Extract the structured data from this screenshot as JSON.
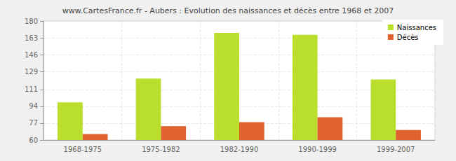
{
  "chart_data": {
    "type": "bar",
    "title": "www.CartesFrance.fr - Aubers : Evolution des naissances et décès entre 1968 et 2007",
    "categories": [
      "1968-1975",
      "1975-1982",
      "1982-1990",
      "1990-1999",
      "1999-2007"
    ],
    "series": [
      {
        "name": "Naissances",
        "color": "#b9df2c",
        "values": [
          98,
          122,
          168,
          166,
          121
        ]
      },
      {
        "name": "Décès",
        "color": "#e0622e",
        "values": [
          66,
          74,
          78,
          83,
          70
        ]
      }
    ],
    "ylim": [
      60,
      180
    ],
    "yticks": [
      60,
      77,
      94,
      111,
      129,
      146,
      163,
      180
    ],
    "grid": true,
    "legend": "top-right"
  }
}
